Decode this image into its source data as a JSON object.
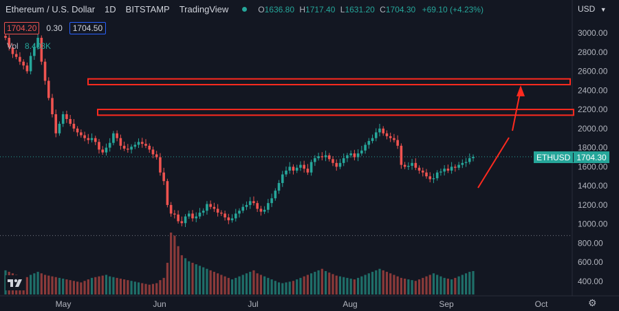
{
  "header": {
    "symbol": "Ethereum / U.S. Dollar",
    "interval": "1D",
    "exchange": "BITSTAMP",
    "source": "TradingView",
    "o_label": "O",
    "o_value": "1636.80",
    "h_label": "H",
    "h_value": "1717.40",
    "l_label": "L",
    "l_value": "1631.20",
    "c_label": "C",
    "c_value": "1704.30",
    "change": "+69.10 (+4.23%)"
  },
  "order": {
    "sell_price": "1704.20",
    "spread": "0.30",
    "buy_price": "1704.50"
  },
  "volume": {
    "label": "Vol",
    "value": "8.403K"
  },
  "currency": "USD",
  "price_tag": {
    "symbol": "ETHUSD",
    "price": "1704.30"
  },
  "colors": {
    "up": "#26a69a",
    "down": "#ef5350",
    "annotation": "#ff2a1f",
    "background": "#131722"
  },
  "icons": {
    "logo": "tradingview-logo-icon",
    "settings": "gear-icon",
    "dropdown": "chevron-down-icon"
  },
  "chart_data": {
    "type": "candlestick",
    "yaxis_ticks": [
      "3000.00",
      "2800.00",
      "2600.00",
      "2400.00",
      "2200.00",
      "2000.00",
      "1800.00",
      "1600.00",
      "1400.00",
      "1200.00",
      "1000.00",
      "800.00",
      "600.00",
      "400.00"
    ],
    "xaxis_labels": [
      "May",
      "Jun",
      "Jul",
      "Aug",
      "Sep",
      "Oct"
    ],
    "last_price": 1704.3,
    "zones": [
      {
        "low": 2460,
        "high": 2520
      },
      {
        "low": 2140,
        "high": 2200
      }
    ],
    "low_line": 880,
    "closes": [
      2950,
      2850,
      2780,
      2750,
      2700,
      2660,
      2600,
      2760,
      2850,
      2950,
      2700,
      2500,
      2320,
      2150,
      1950,
      2050,
      2150,
      2100,
      2050,
      2000,
      1960,
      1930,
      1900,
      1880,
      1900,
      1860,
      1780,
      1750,
      1800,
      1850,
      1950,
      1900,
      1820,
      1790,
      1780,
      1810,
      1830,
      1860,
      1840,
      1820,
      1780,
      1730,
      1700,
      1540,
      1450,
      1200,
      1110,
      1100,
      1030,
      1010,
      1080,
      1110,
      1060,
      1080,
      1120,
      1140,
      1210,
      1180,
      1160,
      1120,
      1110,
      1070,
      1040,
      1060,
      1110,
      1140,
      1180,
      1200,
      1240,
      1220,
      1160,
      1130,
      1150,
      1220,
      1270,
      1350,
      1430,
      1520,
      1560,
      1600,
      1560,
      1590,
      1620,
      1580,
      1540,
      1650,
      1690,
      1710,
      1700,
      1720,
      1680,
      1640,
      1600,
      1640,
      1690,
      1720,
      1740,
      1700,
      1740,
      1770,
      1830,
      1870,
      1900,
      1960,
      2000,
      1950,
      1920,
      1900,
      1880,
      1820,
      1620,
      1600,
      1610,
      1640,
      1590,
      1560,
      1540,
      1500,
      1470,
      1480,
      1540,
      1550,
      1580,
      1560,
      1600,
      1590,
      1620,
      1640,
      1650,
      1690,
      1704
    ],
    "volumes": [
      320,
      300,
      280,
      260,
      250,
      240,
      230,
      260,
      280,
      300,
      280,
      260,
      250,
      240,
      230,
      220,
      210,
      200,
      190,
      180,
      170,
      160,
      180,
      200,
      220,
      230,
      240,
      250,
      260,
      240,
      230,
      220,
      210,
      200,
      190,
      180,
      170,
      160,
      150,
      140,
      130,
      140,
      150,
      190,
      220,
      420,
      820,
      780,
      640,
      520,
      480,
      440,
      420,
      400,
      380,
      360,
      340,
      320,
      300,
      280,
      260,
      240,
      220,
      200,
      220,
      240,
      260,
      280,
      300,
      320,
      280,
      260,
      240,
      220,
      200,
      180,
      160,
      150,
      160,
      170,
      180,
      200,
      220,
      240,
      260,
      280,
      300,
      320,
      340,
      310,
      290,
      270,
      250,
      240,
      230,
      220,
      210,
      200,
      220,
      240,
      260,
      280,
      300,
      320,
      340,
      320,
      300,
      280,
      260,
      240,
      220,
      210,
      200,
      190,
      180,
      200,
      220,
      240,
      260,
      280,
      260,
      240,
      220,
      210,
      200,
      220,
      240,
      260,
      280,
      300,
      310
    ]
  }
}
